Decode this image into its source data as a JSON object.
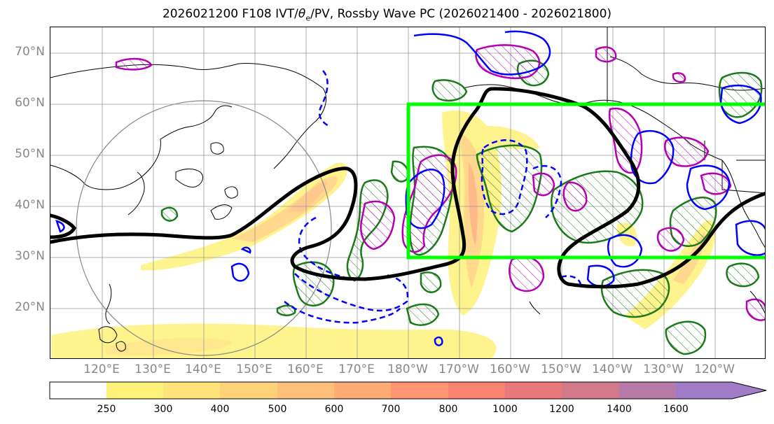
{
  "title": "2026021200 F108 IVT/θe/PV, Rossby Wave PC (2026021400 - 2026021800)",
  "title_parts": {
    "prefix": "2026021200 F108 IVT/",
    "theta": "θ",
    "theta_sub": "e",
    "suffix": "/PV, Rossby Wave PC (2026021400 - 2026021800)"
  },
  "lat_labels": [
    "70°N",
    "60°N",
    "50°N",
    "40°N",
    "30°N",
    "20°N"
  ],
  "lon_labels": [
    "120°E",
    "130°E",
    "140°E",
    "150°E",
    "160°E",
    "170°E",
    "180°W",
    "170°W",
    "160°W",
    "150°W",
    "140°W",
    "130°W",
    "120°W"
  ],
  "colorbar": {
    "ticks": [
      "250",
      "300",
      "400",
      "500",
      "600",
      "700",
      "800",
      "1000",
      "1200",
      "1400",
      "1600"
    ],
    "colors": [
      "#ffffff",
      "#fff27a",
      "#ffe37a",
      "#ffd27a",
      "#ffbf78",
      "#ffac74",
      "#ff9470",
      "#f8826e",
      "#e8787a",
      "#d27a8c",
      "#b87aa8",
      "#a27bc8"
    ]
  },
  "colors": {
    "ivt_shade": "#ffe066",
    "theta_e_black": "#000000",
    "pv_green": "#1a7a1a",
    "pv_magenta": "#b400b4",
    "pv_blue": "#0000ff",
    "box_green": "#00ff00",
    "circle_gray": "#888888",
    "label_gray": "#888888"
  },
  "legend": {
    "colorbar_icon": "colorbar-icon"
  }
}
